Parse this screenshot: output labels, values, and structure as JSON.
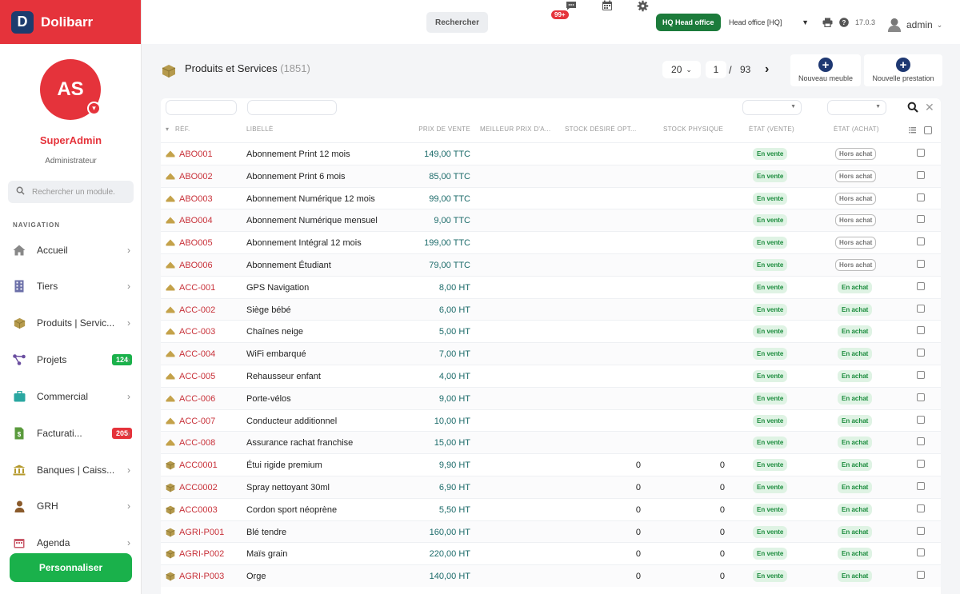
{
  "app": {
    "brand": "Dolibarr",
    "logo_letter": "D"
  },
  "user": {
    "initials": "AS",
    "name": "SuperAdmin",
    "role": "Administrateur"
  },
  "sidebar": {
    "search_placeholder": "Rechercher un module.",
    "nav_title": "NAVIGATION",
    "items": [
      {
        "label": "Accueil",
        "icon": "home-icon"
      },
      {
        "label": "Tiers",
        "icon": "building-icon"
      },
      {
        "label": "Produits | Servic...",
        "icon": "box-icon"
      },
      {
        "label": "Projets",
        "icon": "project-icon",
        "badge": "124",
        "badge_color": "#1ab14b"
      },
      {
        "label": "Commercial",
        "icon": "briefcase-icon"
      },
      {
        "label": "Facturati...",
        "icon": "invoice-icon",
        "badge": "205",
        "badge_color": "#e5333b"
      },
      {
        "label": "Banques | Caiss...",
        "icon": "bank-icon"
      },
      {
        "label": "GRH",
        "icon": "person-icon"
      },
      {
        "label": "Agenda",
        "icon": "calendar-icon"
      }
    ],
    "customize_label": "Personnaliser"
  },
  "topbar": {
    "search_label": "Rechercher",
    "messages_badge": "99+",
    "entity_badge": "HQ Head office",
    "entity_select": "Head office [HQ]",
    "version": "17.0.3",
    "username": "admin"
  },
  "page": {
    "title": "Produits et Services",
    "count": "(1851)",
    "page_size": "20",
    "current_page": "1",
    "slash": "/",
    "total_pages": "93",
    "btn_new_furniture": "Nouveau meuble",
    "btn_new_service": "Nouvelle prestation"
  },
  "table": {
    "headers": {
      "ref": "RÉF.",
      "label": "LIBELLÉ",
      "price": "PRIX DE VENTE",
      "best_price": "MEILLEUR PRIX D'A...",
      "stock_desired": "STOCK DÉSIRÉ OPT...",
      "stock_physical": "STOCK PHYSIQUE",
      "state_sell": "ÉTAT (VENTE)",
      "state_buy": "ÉTAT (ACHAT)"
    },
    "rows": [
      {
        "ref": "ABO001",
        "label": "Abonnement Print 12 mois",
        "price": "149,00 TTC",
        "stock_desired": "",
        "stock_physical": "",
        "sell": "En vente",
        "buy": "Hors achat",
        "type": "service"
      },
      {
        "ref": "ABO002",
        "label": "Abonnement Print 6 mois",
        "price": "85,00 TTC",
        "stock_desired": "",
        "stock_physical": "",
        "sell": "En vente",
        "buy": "Hors achat",
        "type": "service"
      },
      {
        "ref": "ABO003",
        "label": "Abonnement Numérique 12 mois",
        "price": "99,00 TTC",
        "stock_desired": "",
        "stock_physical": "",
        "sell": "En vente",
        "buy": "Hors achat",
        "type": "service"
      },
      {
        "ref": "ABO004",
        "label": "Abonnement Numérique mensuel",
        "price": "9,00 TTC",
        "stock_desired": "",
        "stock_physical": "",
        "sell": "En vente",
        "buy": "Hors achat",
        "type": "service"
      },
      {
        "ref": "ABO005",
        "label": "Abonnement Intégral 12 mois",
        "price": "199,00 TTC",
        "stock_desired": "",
        "stock_physical": "",
        "sell": "En vente",
        "buy": "Hors achat",
        "type": "service"
      },
      {
        "ref": "ABO006",
        "label": "Abonnement Étudiant",
        "price": "79,00 TTC",
        "stock_desired": "",
        "stock_physical": "",
        "sell": "En vente",
        "buy": "Hors achat",
        "type": "service"
      },
      {
        "ref": "ACC-001",
        "label": "GPS Navigation",
        "price": "8,00 HT",
        "stock_desired": "",
        "stock_physical": "",
        "sell": "En vente",
        "buy": "En achat",
        "type": "service"
      },
      {
        "ref": "ACC-002",
        "label": "Siège bébé",
        "price": "6,00 HT",
        "stock_desired": "",
        "stock_physical": "",
        "sell": "En vente",
        "buy": "En achat",
        "type": "service"
      },
      {
        "ref": "ACC-003",
        "label": "Chaînes neige",
        "price": "5,00 HT",
        "stock_desired": "",
        "stock_physical": "",
        "sell": "En vente",
        "buy": "En achat",
        "type": "service"
      },
      {
        "ref": "ACC-004",
        "label": "WiFi embarqué",
        "price": "7,00 HT",
        "stock_desired": "",
        "stock_physical": "",
        "sell": "En vente",
        "buy": "En achat",
        "type": "service"
      },
      {
        "ref": "ACC-005",
        "label": "Rehausseur enfant",
        "price": "4,00 HT",
        "stock_desired": "",
        "stock_physical": "",
        "sell": "En vente",
        "buy": "En achat",
        "type": "service"
      },
      {
        "ref": "ACC-006",
        "label": "Porte-vélos",
        "price": "9,00 HT",
        "stock_desired": "",
        "stock_physical": "",
        "sell": "En vente",
        "buy": "En achat",
        "type": "service"
      },
      {
        "ref": "ACC-007",
        "label": "Conducteur additionnel",
        "price": "10,00 HT",
        "stock_desired": "",
        "stock_physical": "",
        "sell": "En vente",
        "buy": "En achat",
        "type": "service"
      },
      {
        "ref": "ACC-008",
        "label": "Assurance rachat franchise",
        "price": "15,00 HT",
        "stock_desired": "",
        "stock_physical": "",
        "sell": "En vente",
        "buy": "En achat",
        "type": "service"
      },
      {
        "ref": "ACC0001",
        "label": "Étui rigide premium",
        "price": "9,90 HT",
        "stock_desired": "0",
        "stock_physical": "0",
        "sell": "En vente",
        "buy": "En achat",
        "type": "product"
      },
      {
        "ref": "ACC0002",
        "label": "Spray nettoyant 30ml",
        "price": "6,90 HT",
        "stock_desired": "0",
        "stock_physical": "0",
        "sell": "En vente",
        "buy": "En achat",
        "type": "product"
      },
      {
        "ref": "ACC0003",
        "label": "Cordon sport néoprène",
        "price": "5,50 HT",
        "stock_desired": "0",
        "stock_physical": "0",
        "sell": "En vente",
        "buy": "En achat",
        "type": "product"
      },
      {
        "ref": "AGRI-P001",
        "label": "Blé tendre",
        "price": "160,00 HT",
        "stock_desired": "0",
        "stock_physical": "0",
        "sell": "En vente",
        "buy": "En achat",
        "type": "product"
      },
      {
        "ref": "AGRI-P002",
        "label": "Maïs grain",
        "price": "220,00 HT",
        "stock_desired": "0",
        "stock_physical": "0",
        "sell": "En vente",
        "buy": "En achat",
        "type": "product"
      },
      {
        "ref": "AGRI-P003",
        "label": "Orge",
        "price": "140,00 HT",
        "stock_desired": "0",
        "stock_physical": "0",
        "sell": "En vente",
        "buy": "En achat",
        "type": "product"
      }
    ]
  },
  "colors": {
    "brand": "#e5333b",
    "accent_green": "#1ab14b",
    "navy": "#1e3872"
  }
}
